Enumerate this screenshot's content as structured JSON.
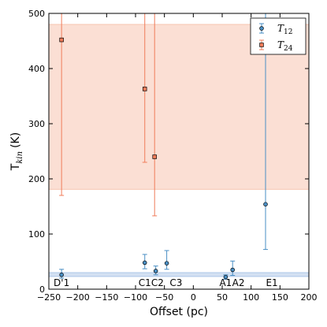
{
  "chart_data": {
    "type": "scatter",
    "xlabel": "Offset (pc)",
    "ylabel": "T",
    "ylabel_sub": "kin",
    "ylabel_unit": "(K)",
    "xlim": [
      -250,
      200
    ],
    "ylim": [
      0,
      500
    ],
    "xticks": [
      "−250",
      "−200",
      "−150",
      "−100",
      "−50",
      "0",
      "50",
      "100",
      "150",
      "200"
    ],
    "yticks": [
      "0",
      "100",
      "200",
      "300",
      "400",
      "500"
    ],
    "grid": false,
    "legend_position": "top-right",
    "bands": [
      {
        "series": "T12",
        "y0": 23,
        "y1": 30,
        "color": "#aec7e8"
      },
      {
        "series": "T24",
        "y0": 181,
        "y1": 480,
        "color": "#f7c4b1"
      }
    ],
    "series": [
      {
        "name": "T",
        "name_sub": "12",
        "color": "#4a8fc4",
        "marker": "circle",
        "points": [
          {
            "x": -228,
            "y": 26,
            "lo": 20,
            "hi": 36
          },
          {
            "x": -84,
            "y": 48,
            "lo": 37,
            "hi": 63
          },
          {
            "x": -65,
            "y": 33,
            "lo": 26,
            "hi": 42
          },
          {
            "x": -46,
            "y": 47,
            "lo": 36,
            "hi": 70
          },
          {
            "x": 56,
            "y": 22,
            "lo": 18,
            "hi": 26
          },
          {
            "x": 68,
            "y": 35,
            "lo": 25,
            "hi": 51
          },
          {
            "x": 125,
            "y": 154,
            "lo": 72,
            "hi": 500
          }
        ]
      },
      {
        "name": "T",
        "name_sub": "24",
        "color": "#f07c5a",
        "marker": "square",
        "points": [
          {
            "x": -228,
            "y": 452,
            "lo": 170,
            "hi": 500
          },
          {
            "x": -84,
            "y": 363,
            "lo": 230,
            "hi": 500
          },
          {
            "x": -67,
            "y": 240,
            "lo": 133,
            "hi": 500
          }
        ]
      }
    ],
    "source_labels": [
      {
        "text": "D'1",
        "x": -228
      },
      {
        "text": "C1",
        "x": -84
      },
      {
        "text": "C2",
        "x": -62
      },
      {
        "text": "C3",
        "x": -30
      },
      {
        "text": "A1",
        "x": 56
      },
      {
        "text": "A2",
        "x": 78
      },
      {
        "text": "E1",
        "x": 136
      }
    ]
  }
}
